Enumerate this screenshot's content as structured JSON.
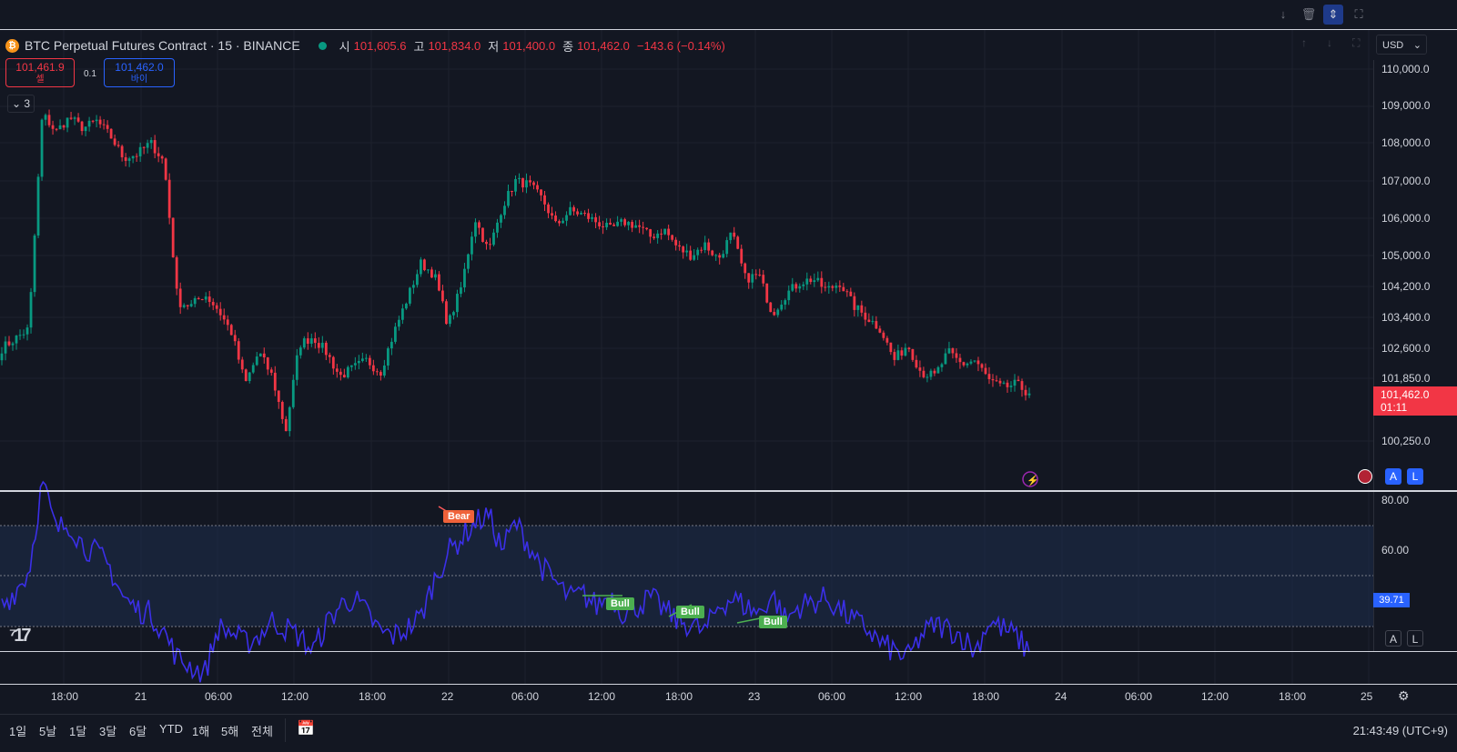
{
  "topbar": {
    "icons": [
      "arrow-down-icon",
      "trash-icon",
      "chevron-updown-icon",
      "fullscreen-icon"
    ]
  },
  "legend": {
    "coin_glyph": "₿",
    "symbol": "BTC Perpetual Futures Contract · 15 · BINANCE",
    "open_label": "시",
    "open": "101,605.6",
    "high_label": "고",
    "high": "101,834.0",
    "low_label": "저",
    "low": "101,400.0",
    "close_label": "종",
    "close": "101,462.0",
    "change": "−143.6 (−0.14%)"
  },
  "order": {
    "sell_price": "101,461.9",
    "sell_label": "셀",
    "spread": "0.1",
    "buy_price": "101,462.0",
    "buy_label": "바이"
  },
  "collapse": {
    "label": "⌄ 3"
  },
  "currency": "USD",
  "price_axis": {
    "labels": [
      "110,000.0",
      "109,000.0",
      "108,000.0",
      "107,000.0",
      "106,000.0",
      "105,000.0",
      "104,200.0",
      "103,400.0",
      "102,600.0",
      "101,850.0",
      "100,250.0"
    ],
    "current_price": "101,462.0",
    "countdown": "01:11"
  },
  "rsi": {
    "axis_labels": [
      "80.00",
      "60.00"
    ],
    "current": "39.71",
    "signals": {
      "bear": "Bear",
      "bull": "Bull"
    }
  },
  "pane_buttons": {
    "auto": "A",
    "log": "L"
  },
  "time_axis": {
    "labels": [
      "18:00",
      "21",
      "06:00",
      "12:00",
      "18:00",
      "22",
      "06:00",
      "12:00",
      "18:00",
      "23",
      "06:00",
      "12:00",
      "18:00",
      "24",
      "06:00",
      "12:00",
      "18:00",
      "25"
    ]
  },
  "ranges": [
    "1일",
    "5날",
    "1달",
    "3달",
    "6달",
    "YTD",
    "1해",
    "5해",
    "전체"
  ],
  "clock": "21:43:49 (UTC+9)",
  "colors": {
    "up": "#089981",
    "down": "#f23645",
    "rsi": "#3b2fe8",
    "accent": "#2962ff",
    "bg": "#131722"
  },
  "chart_data": {
    "type": "candlestick",
    "price_axis_ticks": [
      110000,
      109000,
      108000,
      107000,
      106000,
      105000,
      104200,
      103400,
      102600,
      101850,
      100250
    ],
    "close_path": [
      102600,
      102850,
      103100,
      108800,
      108300,
      108700,
      108400,
      108600,
      108200,
      107600,
      107700,
      108000,
      107500,
      103800,
      103700,
      104000,
      103600,
      103000,
      101700,
      102500,
      101900,
      100500,
      102700,
      102900,
      102500,
      101900,
      102100,
      102300,
      102000,
      103000,
      103900,
      104800,
      104500,
      103200,
      104200,
      106000,
      105100,
      106300,
      107000,
      106900,
      106500,
      105800,
      106200,
      106100,
      105900,
      105700,
      105900,
      105800,
      105500,
      105700,
      105200,
      105000,
      105300,
      104900,
      105600,
      104400,
      104500,
      103500,
      104000,
      104300,
      104400,
      104100,
      104300,
      103700,
      103400,
      103100,
      102300,
      102700,
      102000,
      101900,
      102500,
      102200,
      102300,
      101800,
      101600,
      101700,
      101462
    ],
    "rsi_axis": [
      80,
      60
    ],
    "rsi_last": 39.71
  }
}
